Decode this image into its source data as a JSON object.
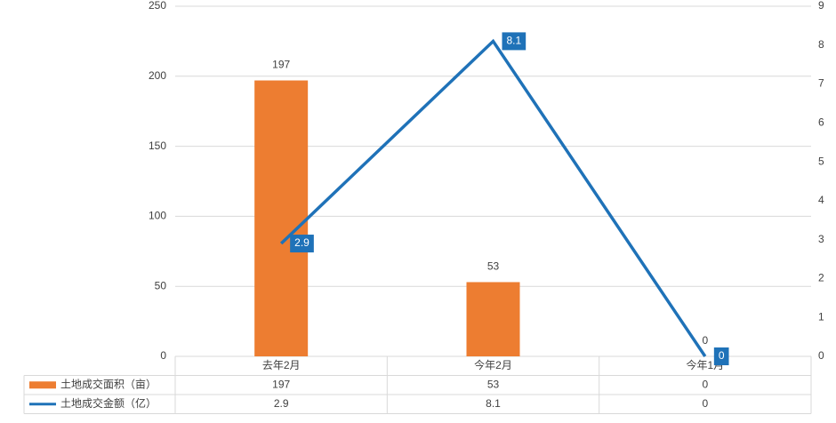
{
  "chart_data": {
    "type": "bar",
    "categories": [
      "去年2月",
      "今年2月",
      "今年1月"
    ],
    "series": [
      {
        "name": "土地成交面积（亩）",
        "type": "bar",
        "color": "#ed7d31",
        "values": [
          197,
          53,
          0
        ]
      },
      {
        "name": "土地成交金额（亿）",
        "type": "line",
        "axis": "y2",
        "color": "#1f72b8",
        "values": [
          2.9,
          8.1,
          0
        ]
      }
    ],
    "ylim": [
      0,
      250
    ],
    "yticks": [
      0,
      50,
      100,
      150,
      200,
      250
    ],
    "y2lim": [
      0,
      9
    ],
    "y2ticks": [
      0,
      1,
      2,
      3,
      4,
      5,
      6,
      7,
      8,
      9
    ],
    "grid": true,
    "data_table": true
  }
}
